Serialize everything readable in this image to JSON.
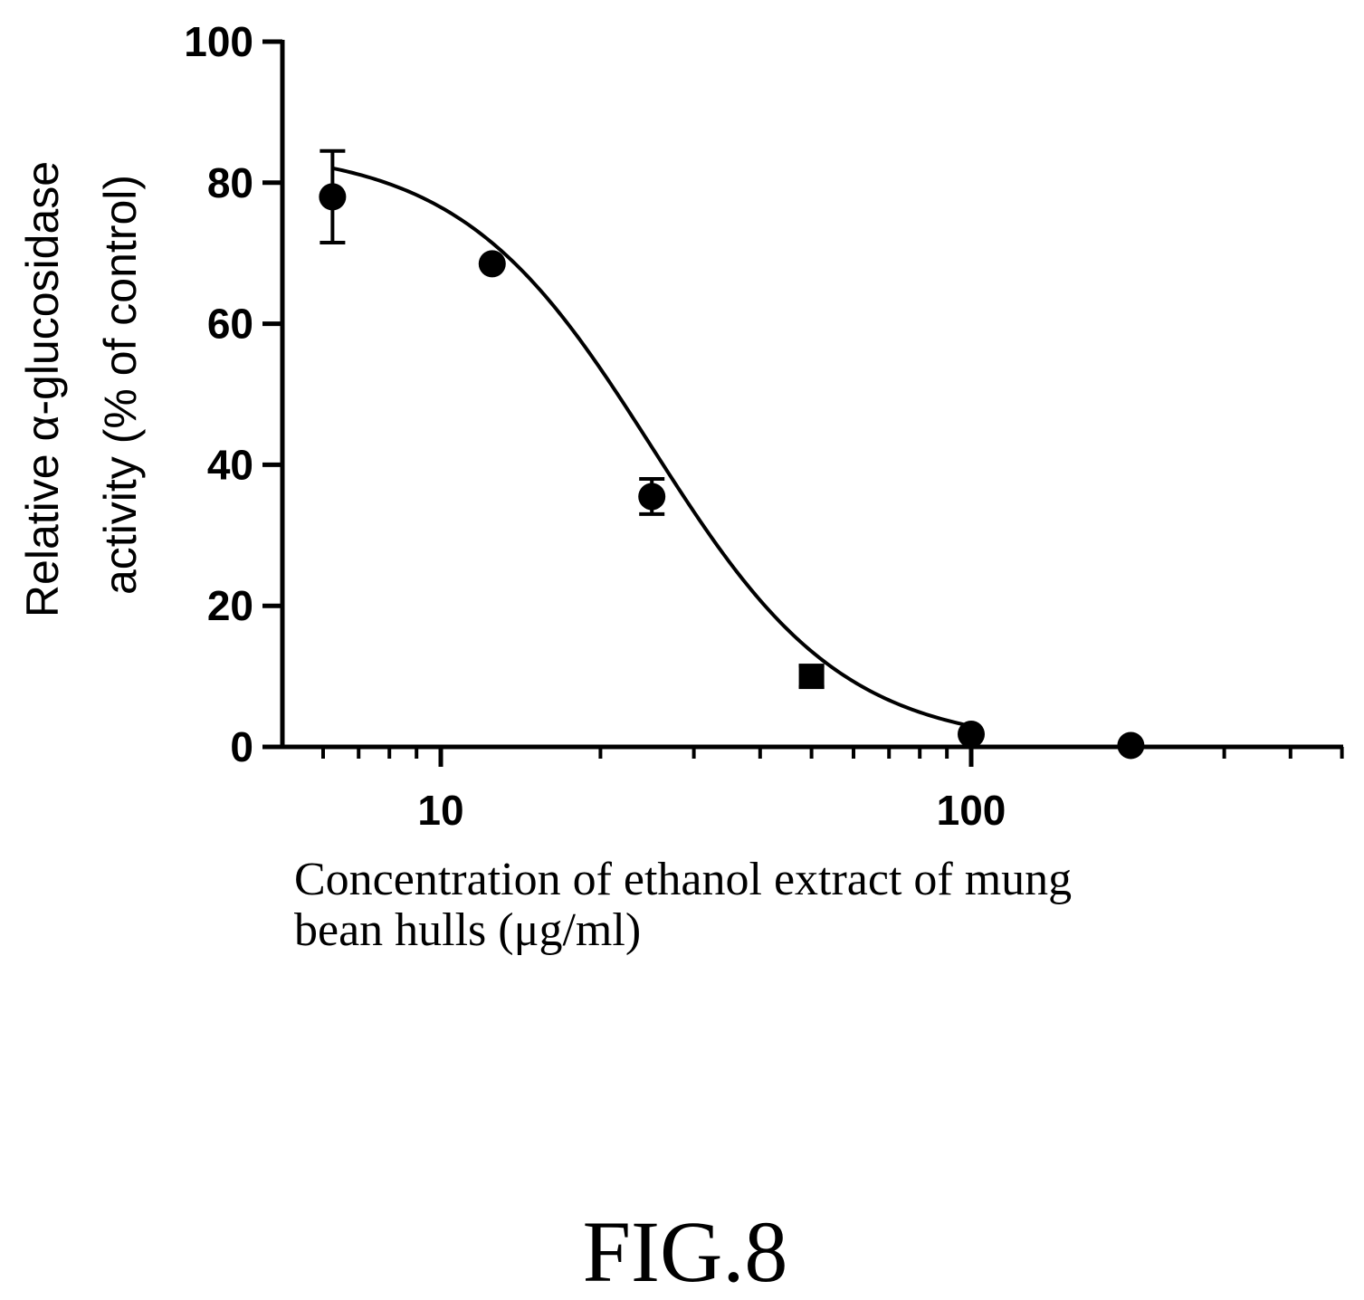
{
  "chart_data": {
    "type": "scatter",
    "x_scale": "log",
    "xlim": [
      5,
      500
    ],
    "ylim": [
      0,
      100
    ],
    "y_ticks": [
      0,
      20,
      40,
      60,
      80,
      100
    ],
    "x_tick_labels": [
      {
        "value": 10,
        "label": "10"
      },
      {
        "value": 100,
        "label": "100"
      }
    ],
    "ylabel_line1": "Relative α-glucosidase",
    "ylabel_line2": "activity (% of control)",
    "xlabel_line1": "Concentration of ethanol extract of mung",
    "xlabel_line2": "bean hulls (μg/ml)",
    "grid": false,
    "legend": "none",
    "points": [
      {
        "x": 6.25,
        "y": 78,
        "err": 6.5,
        "marker": "circle"
      },
      {
        "x": 12.5,
        "y": 68.5,
        "err": 0,
        "marker": "circle"
      },
      {
        "x": 25,
        "y": 35.5,
        "err": 2.5,
        "marker": "circle"
      },
      {
        "x": 50,
        "y": 10,
        "err": 1.5,
        "marker": "square"
      },
      {
        "x": 100,
        "y": 1.8,
        "err": 0,
        "marker": "circle"
      },
      {
        "x": 200,
        "y": 0.2,
        "err": 0,
        "marker": "circle"
      }
    ],
    "fit_curve": {
      "type": "four-parameter logistic",
      "top": 85,
      "bottom": 0,
      "ic50": 25,
      "hill_slope": 2.4
    }
  },
  "figure_label": "FIG.8"
}
